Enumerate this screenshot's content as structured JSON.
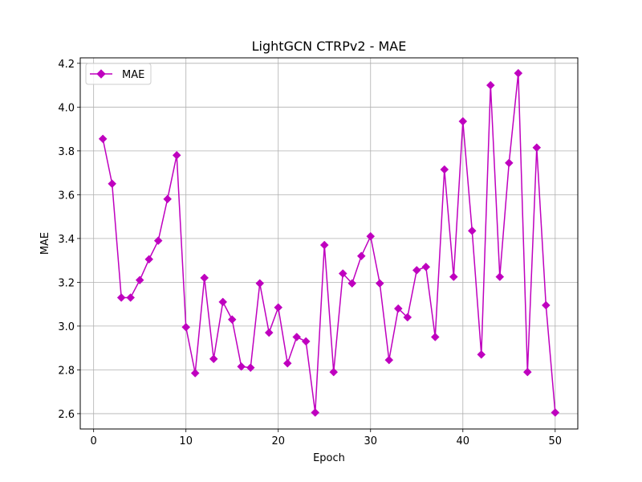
{
  "chart_data": {
    "type": "line",
    "title": "LightGCN CTRPv2 - MAE",
    "xlabel": "Epoch",
    "ylabel": "MAE",
    "xlim": [
      -1.45,
      52.45
    ],
    "ylim": [
      2.53,
      4.225
    ],
    "xticks": [
      0,
      10,
      20,
      30,
      40,
      50
    ],
    "yticks": [
      2.6,
      2.8,
      3.0,
      3.2,
      3.4,
      3.6,
      3.8,
      4.0,
      4.2
    ],
    "ytick_labels": [
      "2.6",
      "2.8",
      "3.0",
      "3.2",
      "3.4",
      "3.6",
      "3.8",
      "4.0",
      "4.2"
    ],
    "grid": true,
    "legend_position": "top-left",
    "series": [
      {
        "name": "MAE",
        "color": "#bf00bf",
        "marker": "diamond",
        "x": [
          1,
          2,
          3,
          4,
          5,
          6,
          7,
          8,
          9,
          10,
          11,
          12,
          13,
          14,
          15,
          16,
          17,
          18,
          19,
          20,
          21,
          22,
          23,
          24,
          25,
          26,
          27,
          28,
          29,
          30,
          31,
          32,
          33,
          34,
          35,
          36,
          37,
          38,
          39,
          40,
          41,
          42,
          43,
          44,
          45,
          46,
          47,
          48,
          49,
          50
        ],
        "values": [
          3.855,
          3.65,
          3.13,
          3.13,
          3.21,
          3.305,
          3.39,
          3.58,
          3.78,
          2.995,
          2.785,
          3.22,
          2.85,
          3.11,
          3.03,
          2.815,
          2.81,
          3.195,
          2.97,
          3.085,
          2.83,
          2.95,
          2.93,
          2.605,
          3.37,
          2.79,
          3.24,
          3.195,
          3.32,
          3.41,
          3.195,
          2.845,
          3.08,
          3.04,
          3.255,
          3.27,
          2.95,
          3.715,
          3.225,
          3.935,
          3.435,
          2.87,
          4.1,
          3.225,
          3.745,
          4.155,
          2.79,
          3.815,
          3.095,
          2.605
        ]
      }
    ]
  }
}
